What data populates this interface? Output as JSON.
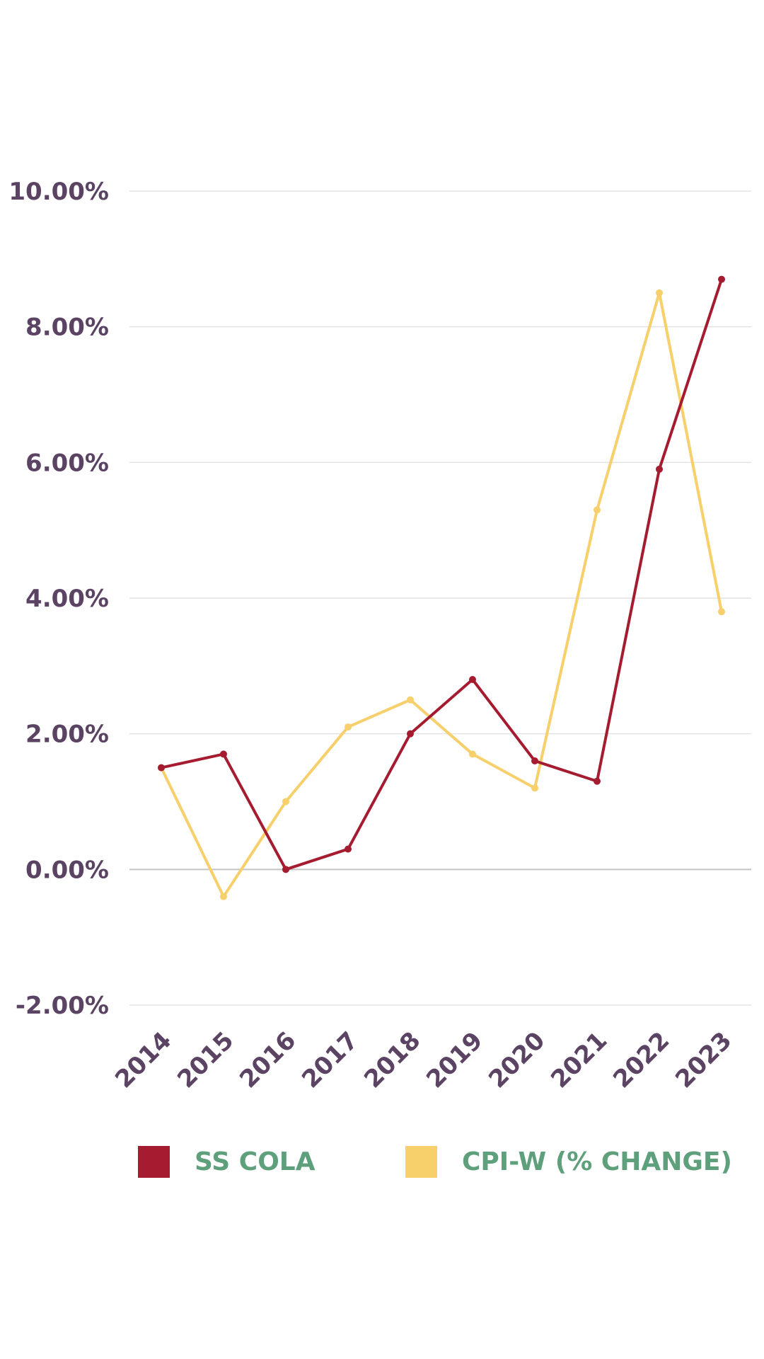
{
  "chart_data": {
    "type": "line",
    "title": "",
    "xlabel": "",
    "ylabel": "",
    "categories": [
      "2014",
      "2015",
      "2016",
      "2017",
      "2018",
      "2019",
      "2020",
      "2021",
      "2022",
      "2023"
    ],
    "series": [
      {
        "name": "SS COLA",
        "color": "#a51c30",
        "values": [
          1.5,
          1.7,
          0.0,
          0.3,
          2.0,
          2.8,
          1.6,
          1.3,
          5.9,
          8.7
        ]
      },
      {
        "name": "CPI-W (% CHANGE)",
        "color": "#f7cf6b",
        "values": [
          1.5,
          -0.4,
          1.0,
          2.1,
          2.5,
          1.7,
          1.2,
          5.3,
          8.5,
          3.8
        ]
      }
    ],
    "y_ticks": [
      "10.00%",
      "8.00%",
      "6.00%",
      "4.00%",
      "2.00%",
      "0.00%",
      "-2.00%"
    ],
    "y_tick_values": [
      10,
      8,
      6,
      4,
      2,
      0,
      -2
    ],
    "ylim": [
      -2,
      10
    ],
    "grid": true,
    "legend_position": "bottom",
    "colors": {
      "tick_text": "#5b4363",
      "legend_text": "#5fa07c",
      "grid": "#e3e3e3",
      "zero_line": "#c4c4c4"
    }
  }
}
